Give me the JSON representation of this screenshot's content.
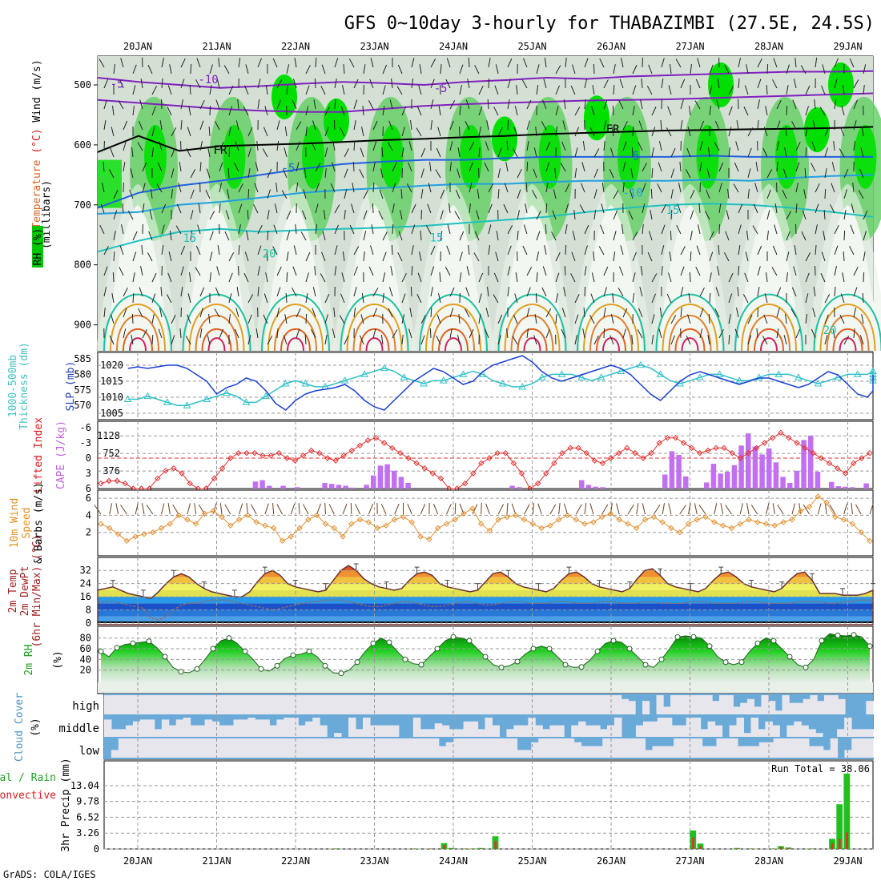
{
  "title": "GFS 0~10day 3-hourly for THABAZIMBI (27.5E, 24.5S)",
  "credit": "GrADS: COLA/IGES",
  "dates": [
    "20JAN",
    "21JAN",
    "22JAN",
    "23JAN",
    "24JAN",
    "25JAN",
    "26JAN",
    "27JAN",
    "28JAN",
    "29JAN"
  ],
  "colors": {
    "rh_light": "#d0e0d0",
    "rh_green": "#60d060",
    "rh_bright": "#00e000",
    "slp": "#1a3fd0",
    "thickness": "#30c0c8",
    "li": "#e03030",
    "cape": "#c070f0",
    "wind": "#e09030",
    "rh": "#20b020",
    "cloud": "#6aaad8",
    "precip_total": "#20c020",
    "precip_conv": "#e03030"
  },
  "panels": {
    "upper": {
      "ylabel": "(millibars)",
      "var_temp": "Temperature ",
      "var_temp_unit": "(°C)",
      "var_wind": "Wind (m/s)",
      "var_rh": "RH (%)",
      "pressure_ticks": [
        500,
        600,
        700,
        800,
        900
      ],
      "contour_labels": [
        "-10",
        "-5",
        "-5",
        "FR",
        "FR",
        "-5",
        "-5",
        "-10",
        "15",
        "15",
        "15",
        "20",
        "20"
      ]
    },
    "thickness": {
      "ylabel_left": "1000-500mb",
      "ylabel_left2": "Thickness (dm)",
      "ylabel_right": "SLP (mb)",
      "left_ticks": [
        "585",
        "580",
        "575",
        "570"
      ],
      "right_ticks": [
        "1020",
        "1015",
        "1010",
        "1005"
      ]
    },
    "cape": {
      "ylabel_left": "Lifted Index",
      "ylabel_right": "CAPE (J/kg)",
      "left_ticks": [
        "-6",
        "-3",
        "0",
        "3",
        "6"
      ],
      "right_ticks": [
        "1128",
        "752",
        "376"
      ]
    },
    "wind": {
      "ylabel_1": "10m Wind",
      "ylabel_2": "Speed",
      "ylabel_3": "& Barbs (m/s)",
      "ticks": [
        "6",
        "4",
        "2"
      ]
    },
    "temp": {
      "ylabel_1": "2m Temp",
      "ylabel_2": "2m DewPt",
      "ylabel_3": "(6hr Min/Max) (°C)",
      "ticks": [
        "32",
        "24",
        "16",
        "8",
        "0"
      ]
    },
    "rh": {
      "ylabel_1": "2m RH",
      "ylabel_2": "(%)",
      "ticks": [
        "80",
        "60",
        "40",
        "20"
      ]
    },
    "cloud": {
      "ylabel_1": "Cloud Cover",
      "ylabel_2": "(%)",
      "levels": [
        "high",
        "middle",
        "low"
      ]
    },
    "precip": {
      "run_total": "Run Total = 38.06",
      "legend_total": "tal / Rain",
      "legend_convective": "Convective",
      "ylabel": "3hr Precip (mm)",
      "ticks": [
        "13.04",
        "9.78",
        "6.52",
        "3.26",
        "0"
      ]
    }
  },
  "chart_data": {
    "type": "meteogram",
    "x_start": "19JAN 21Z",
    "step_hours": 3,
    "thickness_dm": [
      572,
      572,
      573,
      572,
      571,
      570,
      570,
      571,
      572,
      573,
      574,
      573,
      571,
      571,
      573,
      575,
      577,
      578,
      577,
      576,
      576,
      577,
      578,
      579,
      580,
      581,
      582,
      581,
      579,
      578,
      577,
      578,
      578,
      579,
      580,
      581,
      580,
      578,
      577,
      576,
      576,
      577,
      579,
      580,
      580,
      580,
      579,
      578,
      579,
      580,
      581,
      582,
      583,
      582,
      580,
      578,
      577,
      578,
      579,
      580,
      580,
      579,
      578,
      578,
      579,
      580,
      580,
      580,
      579,
      578,
      577,
      578,
      579,
      580,
      580,
      580,
      581,
      582,
      580,
      578,
      578,
      578,
      579
    ],
    "slp_mb": [
      1019,
      1019.5,
      1019,
      1019.5,
      1020,
      1020,
      1019,
      1017,
      1015,
      1011,
      1013,
      1014,
      1016,
      1015,
      1012,
      1008,
      1006,
      1009,
      1011,
      1012,
      1012.5,
      1013,
      1014,
      1012,
      1009,
      1007,
      1006,
      1009,
      1012,
      1015,
      1017,
      1019,
      1018,
      1016,
      1014,
      1015,
      1018,
      1020,
      1021,
      1022,
      1023,
      1021,
      1018,
      1016,
      1015,
      1016,
      1017,
      1018,
      1019,
      1020,
      1019,
      1017,
      1014,
      1011,
      1009,
      1012,
      1015,
      1017,
      1018,
      1017,
      1016,
      1015,
      1014,
      1015,
      1016,
      1016,
      1015,
      1014,
      1013,
      1014,
      1016,
      1018,
      1017,
      1014,
      1011,
      1010,
      1012,
      1015,
      1017,
      1016,
      1015,
      1015,
      1016
    ],
    "lifted_index": [
      5,
      4.5,
      4.5,
      5,
      6,
      6,
      6,
      4,
      2.5,
      2,
      3,
      5,
      6,
      6,
      4,
      2,
      0,
      -1,
      -1,
      -1,
      -0.5,
      -0.5,
      -1,
      0,
      0.5,
      -0.5,
      -1.5,
      -1,
      0,
      0.5,
      -0.5,
      -1.5,
      -2.5,
      -3.5,
      -4,
      -3,
      -2,
      -1,
      0,
      1,
      2,
      3,
      4,
      6,
      6,
      5,
      3,
      1,
      0,
      -1,
      -1,
      1,
      3,
      6,
      5,
      3,
      1,
      -1,
      -2,
      -2,
      -1,
      0.5,
      1,
      0,
      -1,
      -2,
      -1,
      0,
      -1,
      -3,
      -4,
      -4,
      -3,
      -2,
      -1,
      -1.5,
      -2,
      -2,
      -1,
      0,
      -1,
      -2,
      -3,
      -4,
      -5,
      -4,
      -3,
      -2,
      -1,
      0,
      1,
      2,
      3,
      1,
      0,
      -1
    ],
    "cape_jkg": [
      0,
      0,
      0,
      0,
      0,
      0,
      0,
      0,
      0,
      0,
      0,
      0,
      0,
      0,
      0,
      0,
      0,
      0,
      0,
      0,
      0,
      0,
      150,
      180,
      60,
      0,
      60,
      0,
      30,
      0,
      0,
      0,
      120,
      100,
      80,
      60,
      20,
      0,
      80,
      280,
      490,
      520,
      380,
      250,
      120,
      0,
      0,
      0,
      0,
      0,
      0,
      0,
      0,
      0,
      0,
      0,
      0,
      0,
      0,
      60,
      30,
      0,
      0,
      0,
      0,
      0,
      0,
      0,
      0,
      180,
      80,
      40,
      30,
      0,
      0,
      0,
      0,
      0,
      0,
      0,
      0,
      300,
      800,
      720,
      260,
      0,
      0,
      130,
      530,
      320,
      360,
      500,
      920,
      1180,
      900,
      730,
      860,
      560,
      250,
      120,
      380,
      1040,
      1130,
      360,
      0,
      140,
      50,
      40,
      30,
      0,
      110
    ],
    "wind_speed_ms": [
      3,
      2.5,
      1.8,
      1,
      1.5,
      1.8,
      2,
      2.5,
      3,
      4,
      3.5,
      3,
      4.2,
      4.5,
      3.8,
      2.8,
      3.5,
      4,
      3.2,
      2.8,
      2.5,
      1,
      1.5,
      2.5,
      3.5,
      4,
      3,
      2.5,
      1.5,
      3,
      3.5,
      3.2,
      2.5,
      2.8,
      3.5,
      3.8,
      3.2,
      1.5,
      1.2,
      2.5,
      3,
      3.5,
      4.2,
      4.8,
      3,
      2.2,
      3.5,
      3.8,
      4,
      3.5,
      3,
      2.5,
      2.8,
      3.5,
      4,
      3.5,
      3,
      3.2,
      3.8,
      4.2,
      3.5,
      3,
      2.5,
      3.5,
      3.8,
      3.2,
      2.5,
      2,
      3,
      3.5,
      3.8,
      3.2,
      2.8,
      2.5,
      3,
      3.5,
      3.2,
      3,
      2.8,
      3.2,
      3.5,
      4.5,
      5,
      6.2,
      5.5,
      3.8,
      3.5,
      3,
      2,
      1
    ],
    "temp_c": [
      20,
      21,
      22,
      20,
      18,
      17,
      16,
      15,
      19,
      24,
      28,
      30,
      28,
      24,
      21,
      19,
      18,
      17,
      16,
      16,
      19,
      25,
      30,
      32,
      29,
      24,
      22,
      21,
      20,
      19,
      20,
      26,
      32,
      35,
      32,
      27,
      24,
      22,
      21,
      20,
      21,
      26,
      30,
      31,
      29,
      24,
      22,
      21,
      20,
      19,
      20,
      25,
      30,
      31,
      28,
      24,
      22,
      21,
      20,
      19,
      21,
      26,
      30,
      31,
      28,
      24,
      22,
      21,
      20,
      19,
      21,
      27,
      32,
      33,
      29,
      24,
      22,
      21,
      20,
      19,
      21,
      26,
      30,
      31,
      28,
      24,
      22,
      21,
      20,
      19,
      21,
      26,
      30,
      31,
      26,
      18,
      18,
      18,
      17,
      17,
      17,
      18,
      20
    ],
    "dewpt_c": [
      12,
      13,
      13,
      12,
      11,
      10,
      9,
      3,
      2,
      4,
      8,
      11,
      12,
      12,
      13,
      14,
      14,
      14,
      13,
      12,
      11,
      10,
      9,
      8,
      9,
      10,
      11,
      12,
      13,
      13,
      14,
      14,
      14,
      13,
      12,
      11,
      10,
      10,
      11,
      12,
      13,
      13,
      12,
      11,
      10,
      10,
      11,
      12,
      13,
      13,
      12,
      11,
      11,
      12,
      13,
      13,
      13,
      12,
      12,
      12,
      13,
      13,
      13,
      12,
      12,
      12,
      13,
      13,
      13,
      12,
      12,
      12,
      13,
      13,
      12,
      12,
      12,
      12,
      13,
      13,
      13,
      12,
      12,
      12,
      12,
      13,
      13,
      13,
      12,
      12,
      12,
      12,
      13,
      13,
      13,
      13,
      12,
      12,
      13,
      13,
      14,
      14,
      14
    ],
    "rh_pct": [
      55,
      45,
      62,
      68,
      70,
      72,
      74,
      62,
      45,
      25,
      17,
      15,
      22,
      40,
      60,
      75,
      80,
      70,
      55,
      40,
      22,
      18,
      28,
      42,
      48,
      50,
      55,
      45,
      28,
      15,
      14,
      20,
      35,
      55,
      70,
      80,
      72,
      55,
      40,
      32,
      30,
      45,
      60,
      75,
      82,
      80,
      75,
      60,
      45,
      30,
      25,
      28,
      36,
      50,
      60,
      65,
      60,
      45,
      30,
      25,
      26,
      38,
      55,
      70,
      75,
      72,
      60,
      45,
      30,
      25,
      40,
      60,
      82,
      84,
      82,
      80,
      65,
      45,
      35,
      30,
      35,
      55,
      70,
      80,
      75,
      60,
      45,
      30,
      25,
      40,
      75,
      88,
      85,
      84,
      86,
      82,
      65
    ],
    "cloud_high_pct": [
      0,
      0,
      0,
      0,
      0,
      0,
      0,
      0,
      0,
      0,
      0,
      0,
      0,
      0,
      0,
      0,
      0,
      0,
      0,
      0,
      0,
      0,
      0,
      0,
      0,
      0,
      0,
      0,
      0,
      0,
      0,
      0,
      0,
      0,
      0,
      0,
      0,
      0,
      0,
      0,
      0,
      0,
      0,
      0,
      0,
      0,
      0,
      0,
      0,
      0,
      0,
      0,
      0,
      0,
      0,
      0,
      0,
      0,
      0,
      0,
      0,
      0,
      0,
      0,
      0,
      0,
      0,
      0,
      0,
      0,
      0,
      0,
      0,
      0,
      20,
      30,
      100,
      30,
      100,
      0,
      60,
      0,
      0,
      0,
      0,
      0,
      0,
      30,
      0,
      0,
      60,
      40,
      20,
      60,
      0,
      30,
      80,
      0,
      40,
      40,
      20,
      0,
      30,
      0,
      0,
      20,
      100,
      100,
      100,
      30
    ],
    "cloud_mid_pct": [
      10,
      60,
      60,
      40,
      20,
      10,
      10,
      60,
      10,
      40,
      10,
      0,
      40,
      40,
      10,
      20,
      40,
      40,
      10,
      10,
      0,
      10,
      10,
      40,
      10,
      0,
      0,
      40,
      20,
      0,
      40,
      100,
      80,
      100,
      0,
      60,
      0,
      40,
      40,
      40,
      40,
      100,
      100,
      0,
      60,
      60,
      30,
      40,
      60,
      60,
      20,
      20,
      60,
      0,
      40,
      100,
      60,
      40,
      40,
      0,
      40,
      60,
      40,
      40,
      100,
      40,
      20,
      40,
      40,
      60,
      40,
      0,
      100,
      100,
      40,
      20,
      20,
      0,
      0,
      40,
      40,
      0,
      0,
      60,
      20,
      40,
      100,
      40,
      0,
      80,
      0,
      60,
      20,
      40,
      100,
      40,
      20,
      40,
      60,
      80,
      100,
      100,
      60,
      0,
      60,
      60,
      60
    ],
    "cloud_low_pct": [
      100,
      60,
      0,
      0,
      0,
      0,
      0,
      0,
      0,
      0,
      0,
      0,
      0,
      0,
      0,
      0,
      0,
      0,
      0,
      0,
      0,
      0,
      0,
      0,
      0,
      0,
      0,
      0,
      0,
      0,
      0,
      0,
      0,
      0,
      0,
      0,
      0,
      0,
      0,
      0,
      0,
      0,
      0,
      0,
      0,
      0,
      0,
      40,
      20,
      0,
      0,
      0,
      0,
      0,
      0,
      0,
      0,
      0,
      60,
      60,
      20,
      0,
      0,
      0,
      0,
      0,
      20,
      40,
      40,
      40,
      0,
      0,
      0,
      0,
      0,
      0,
      60,
      40,
      40,
      40,
      0,
      0,
      0,
      0,
      40,
      40,
      0,
      0,
      0,
      40,
      40,
      40,
      20,
      20,
      0,
      0,
      0,
      0,
      0,
      40,
      40,
      60,
      0,
      100,
      60,
      0,
      0,
      0
    ],
    "precip_total_mm": [
      0,
      0,
      0,
      0,
      0,
      0,
      0,
      0,
      0,
      0,
      0,
      0,
      0,
      0,
      0,
      0,
      0,
      0,
      0,
      0,
      0,
      0,
      0,
      0,
      0,
      0,
      0,
      0,
      0,
      0,
      0,
      0.1,
      0,
      0,
      0,
      0,
      0,
      0,
      0,
      0,
      0,
      0,
      0.1,
      0,
      0.1,
      0,
      1.2,
      0.2,
      0,
      0.1,
      0.1,
      0.2,
      0,
      2.6,
      0,
      0,
      0,
      0,
      0,
      0,
      0,
      0,
      0,
      0,
      0,
      0,
      0,
      0,
      0,
      0,
      0,
      0,
      0,
      0,
      0,
      0,
      0,
      0,
      0,
      0,
      3.8,
      1.1,
      0,
      0,
      0,
      0,
      0.2,
      0,
      0.1,
      0,
      0,
      0.1,
      0.6,
      0.3,
      0,
      0,
      0.1,
      0,
      0,
      2.1,
      9.2,
      16.2,
      0,
      0,
      0
    ],
    "precip_conv_mm": [
      0,
      0,
      0,
      0,
      0,
      0,
      0,
      0,
      0,
      0,
      0,
      0,
      0,
      0,
      0,
      0,
      0,
      0,
      0,
      0,
      0,
      0,
      0,
      0,
      0,
      0,
      0,
      0,
      0,
      0,
      0,
      0.1,
      0,
      0,
      0,
      0,
      0,
      0,
      0,
      0,
      0,
      0,
      0.1,
      0,
      0.1,
      0,
      0.8,
      0.1,
      0,
      0.1,
      0.1,
      0.1,
      0,
      1.6,
      0,
      0,
      0,
      0,
      0,
      0,
      0,
      0,
      0,
      0,
      0,
      0,
      0,
      0,
      0,
      0,
      0,
      0,
      0,
      0,
      0,
      0,
      0,
      0,
      0,
      0,
      2.4,
      0.6,
      0,
      0,
      0,
      0,
      0.1,
      0,
      0.1,
      0,
      0,
      0.1,
      0.4,
      0.2,
      0,
      0,
      0.1,
      0,
      0,
      1.2,
      2.1,
      3.4,
      0,
      0,
      0
    ]
  }
}
